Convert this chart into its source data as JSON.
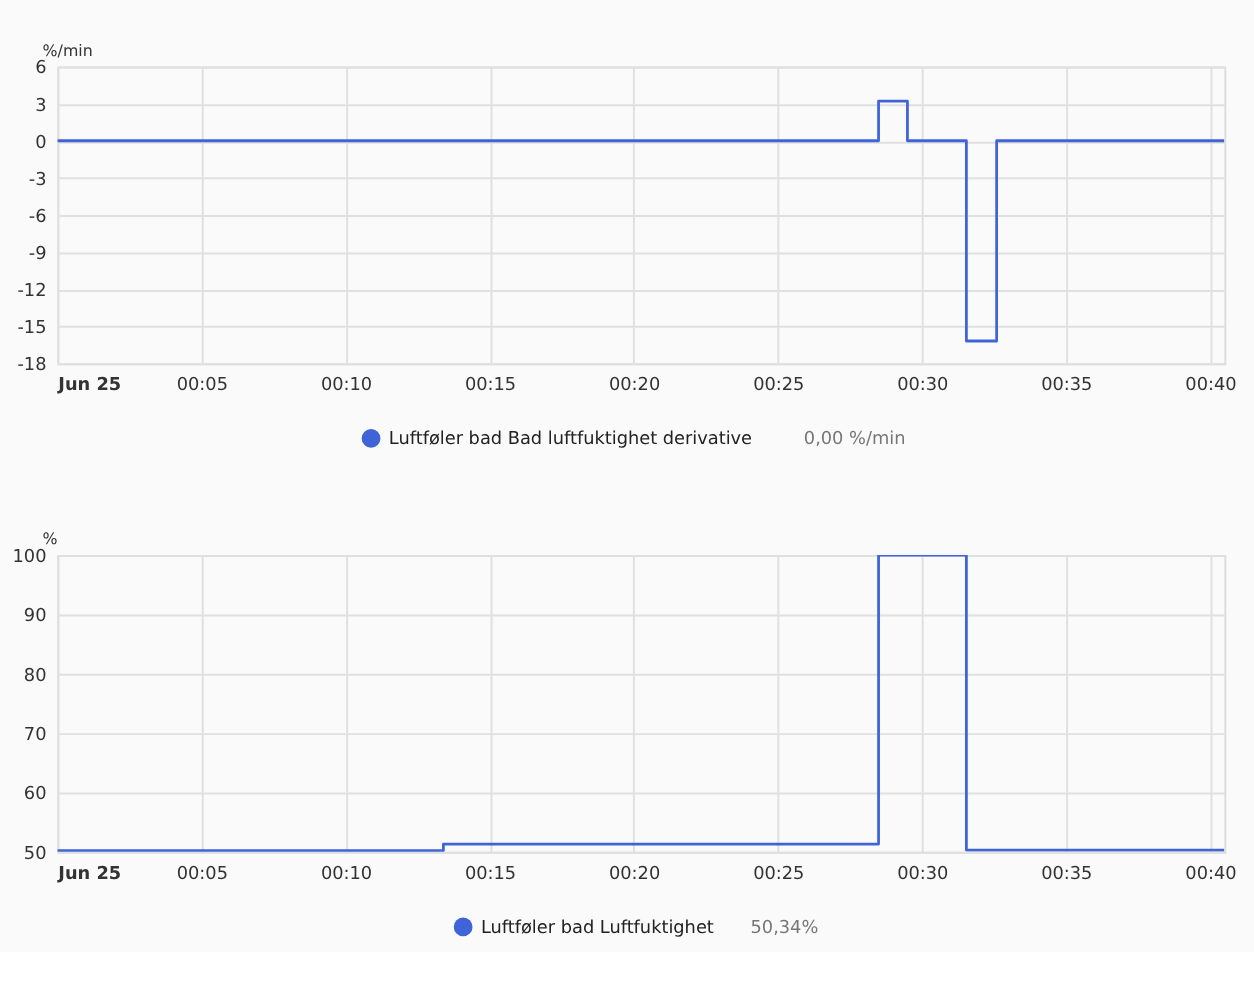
{
  "chart_data": [
    {
      "type": "step",
      "ylabel": "%/min",
      "x": [
        0,
        0.475,
        0.4917,
        0.5258,
        0.5433,
        0.675
      ],
      "series": [
        {
          "name": "Luftføler bad Bad luftfuktighet derivative",
          "color": "#3e64d8",
          "values": [
            0,
            3.2,
            0,
            -16.2,
            0,
            0
          ]
        }
      ],
      "annotations": [
        "0,00 %/min"
      ],
      "xlim": [
        0,
        0.675
      ],
      "xticks": [
        {
          "value": 0,
          "label": "Jun 25"
        },
        {
          "value": 0.0833,
          "label": "00:05"
        },
        {
          "value": 0.1667,
          "label": "00:10"
        },
        {
          "value": 0.25,
          "label": "00:15"
        },
        {
          "value": 0.3333,
          "label": "00:20"
        },
        {
          "value": 0.4167,
          "label": "00:25"
        },
        {
          "value": 0.5,
          "label": "00:30"
        },
        {
          "value": 0.5833,
          "label": "00:35"
        },
        {
          "value": 0.6667,
          "label": "00:40"
        }
      ],
      "ylim": [
        -18,
        6
      ],
      "yticks": [
        -18,
        -15,
        -12,
        -9,
        -6,
        -3,
        0,
        3,
        6
      ],
      "grid": true,
      "legend": "bottom",
      "marker": "none",
      "line_style": "solid"
    },
    {
      "type": "step",
      "ylabel": "%",
      "x": [
        0,
        0.2233,
        0.475,
        0.5258,
        0.675
      ],
      "series": [
        {
          "name": "Luftføler bad Luftfuktighet",
          "color": "#3e64d8",
          "values": [
            50.2,
            51.3,
            100,
            50.3,
            50.3
          ]
        }
      ],
      "annotations": [
        "50,34%"
      ],
      "xlim": [
        0,
        0.675
      ],
      "xticks": [
        {
          "value": 0,
          "label": "Jun 25"
        },
        {
          "value": 0.0833,
          "label": "00:05"
        },
        {
          "value": 0.1667,
          "label": "00:10"
        },
        {
          "value": 0.25,
          "label": "00:15"
        },
        {
          "value": 0.3333,
          "label": "00:20"
        },
        {
          "value": 0.4167,
          "label": "00:25"
        },
        {
          "value": 0.5,
          "label": "00:30"
        },
        {
          "value": 0.5833,
          "label": "00:35"
        },
        {
          "value": 0.6667,
          "label": "00:40"
        }
      ],
      "ylim": [
        50,
        100
      ],
      "yticks": [
        50,
        60,
        70,
        80,
        90,
        100
      ],
      "grid": true,
      "legend": "bottom",
      "marker": "none",
      "line_style": "solid"
    }
  ]
}
